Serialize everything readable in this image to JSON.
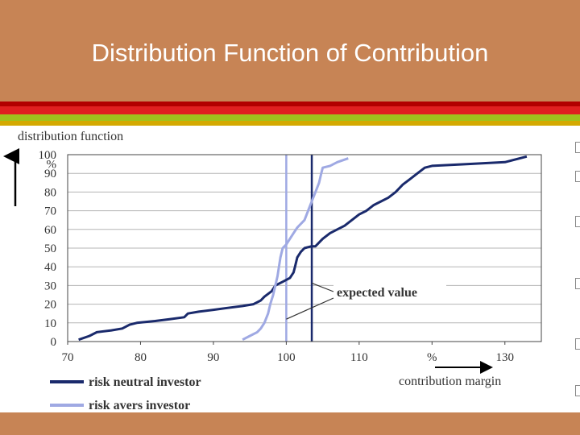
{
  "slide": {
    "title": "Distribution Function of Contribution",
    "colors": {
      "background": "#c78455",
      "stripe_red_dark": "#b20000",
      "stripe_red": "#e02020",
      "stripe_green": "#9fc21d",
      "stripe_gold": "#d4a900",
      "panel": "#ffffff"
    }
  },
  "chart_data": {
    "type": "line",
    "ylabel": "distribution function",
    "y_unit": "%",
    "xlabel": "contribution margin",
    "x_unit": "%",
    "xlim": [
      70,
      135
    ],
    "ylim": [
      0,
      100
    ],
    "x_ticks": [
      "70",
      "80",
      "90",
      "100",
      "110",
      "%",
      "130"
    ],
    "x_tick_values": [
      70,
      80,
      90,
      100,
      110,
      120,
      130
    ],
    "y_ticks": [
      "0",
      "10",
      "20",
      "30",
      "40",
      "50",
      "60",
      "70",
      "80",
      "90",
      "%",
      "100"
    ],
    "y_tick_values": [
      0,
      10,
      20,
      30,
      40,
      50,
      60,
      70,
      80,
      90,
      95,
      100
    ],
    "grid": true,
    "legend_position": "bottom-left",
    "series": [
      {
        "name": "risk neutral investor",
        "color": "#1a2a6c",
        "points": [
          [
            71.5,
            1
          ],
          [
            73,
            3
          ],
          [
            74,
            5
          ],
          [
            76,
            6
          ],
          [
            77.5,
            7
          ],
          [
            78.5,
            9
          ],
          [
            79.5,
            10
          ],
          [
            82,
            11
          ],
          [
            84,
            12
          ],
          [
            86,
            13
          ],
          [
            86.5,
            15
          ],
          [
            88,
            16
          ],
          [
            90,
            17
          ],
          [
            92,
            18
          ],
          [
            94,
            19
          ],
          [
            95.5,
            20
          ],
          [
            96.5,
            22
          ],
          [
            97,
            24
          ],
          [
            98,
            27
          ],
          [
            98.5,
            30
          ],
          [
            99.5,
            32
          ],
          [
            100.5,
            34
          ],
          [
            101,
            37
          ],
          [
            101.2,
            40
          ],
          [
            101.5,
            45
          ],
          [
            102,
            48
          ],
          [
            102.5,
            50
          ],
          [
            103.5,
            51
          ],
          [
            104,
            51
          ],
          [
            105,
            55
          ],
          [
            106,
            58
          ],
          [
            107,
            60
          ],
          [
            108,
            62
          ],
          [
            109,
            65
          ],
          [
            110,
            68
          ],
          [
            111,
            70
          ],
          [
            112,
            73
          ],
          [
            113,
            75
          ],
          [
            114,
            77
          ],
          [
            115,
            80
          ],
          [
            116,
            84
          ],
          [
            117,
            87
          ],
          [
            118,
            90
          ],
          [
            119,
            93
          ],
          [
            120,
            94
          ],
          [
            125,
            95
          ],
          [
            130,
            96
          ],
          [
            133,
            99
          ]
        ]
      },
      {
        "name": "risk avers investor",
        "color": "#9fa9e3",
        "points": [
          [
            94,
            1
          ],
          [
            95,
            3
          ],
          [
            96,
            5
          ],
          [
            96.5,
            7
          ],
          [
            97,
            10
          ],
          [
            97.5,
            15
          ],
          [
            97.8,
            20
          ],
          [
            98.2,
            25
          ],
          [
            98.5,
            30
          ],
          [
            98.8,
            35
          ],
          [
            99,
            40
          ],
          [
            99.2,
            45
          ],
          [
            99.5,
            50
          ],
          [
            100,
            52
          ],
          [
            100.5,
            55
          ],
          [
            101,
            58
          ],
          [
            101.5,
            61
          ],
          [
            102.5,
            65
          ],
          [
            103,
            70
          ],
          [
            103.5,
            75
          ],
          [
            104,
            80
          ],
          [
            104.5,
            85
          ],
          [
            104.8,
            90
          ],
          [
            105,
            93
          ],
          [
            106,
            94
          ],
          [
            107,
            96
          ],
          [
            108.5,
            98
          ]
        ]
      }
    ],
    "reference_lines": [
      {
        "name": "risk avers expected",
        "x": 100,
        "color": "#9fa9e3"
      },
      {
        "name": "risk neutral expected",
        "x": 103.5,
        "color": "#1a2a6c"
      }
    ],
    "annotation": {
      "text": "expected value",
      "targets": [
        [
          103.5,
          30
        ],
        [
          100,
          12
        ]
      ]
    }
  }
}
